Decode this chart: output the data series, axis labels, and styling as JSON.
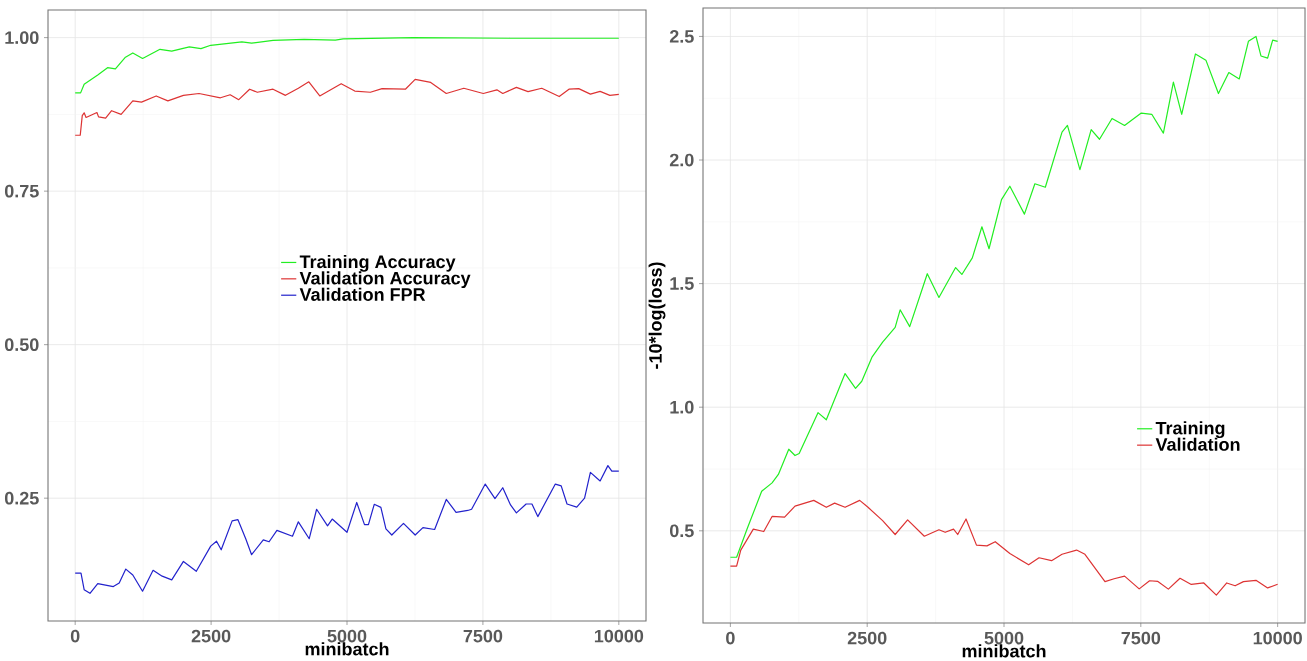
{
  "chart_data": [
    {
      "type": "line",
      "xlabel": "minibatch",
      "xlim": [
        -500,
        10500
      ],
      "ylim": [
        0.05,
        1.045
      ],
      "xticks": [
        0,
        2500,
        5000,
        7500,
        10000
      ],
      "yticks": [
        {
          "value": 0.25,
          "label": "0.25"
        },
        {
          "value": 0.5,
          "label": "0.50"
        },
        {
          "value": 0.75,
          "label": "0.75"
        },
        {
          "value": 1.0,
          "label": "1.00"
        }
      ],
      "grid": true,
      "legend": "center",
      "series": [
        {
          "name": "Training Accuracy",
          "color": "#22ee22",
          "x": [
            0,
            100,
            165,
            415,
            595,
            740,
            917,
            1060,
            1240,
            1560,
            1776,
            2100,
            2314,
            2493,
            3066,
            3245,
            3640,
            4212,
            4785,
            4930,
            6218,
            8000,
            10000
          ],
          "values": [
            0.91,
            0.91,
            0.924,
            0.939,
            0.951,
            0.949,
            0.9675,
            0.975,
            0.966,
            0.981,
            0.978,
            0.985,
            0.982,
            0.9875,
            0.993,
            0.991,
            0.9956,
            0.997,
            0.996,
            0.998,
            1.0,
            0.999,
            0.999
          ]
        },
        {
          "name": "Validation Accuracy",
          "color": "#dd3333",
          "x": [
            0,
            93,
            130,
            165,
            200,
            400,
            430,
            560,
            670,
            845,
            1060,
            1220,
            1490,
            1705,
            1991,
            2278,
            2672,
            2851,
            3009,
            3209,
            3350,
            3639,
            3868,
            4105,
            4298,
            4499,
            4893,
            5143,
            5430,
            5645,
            6074,
            6254,
            6540,
            6826,
            7149,
            7507,
            7757,
            7865,
            8116,
            8330,
            8582,
            8904,
            9083,
            9262,
            9477,
            9656,
            9835,
            10000
          ],
          "values": [
            0.841,
            0.841,
            0.873,
            0.8775,
            0.87,
            0.878,
            0.871,
            0.869,
            0.881,
            0.875,
            0.897,
            0.895,
            0.905,
            0.897,
            0.906,
            0.909,
            0.902,
            0.907,
            0.899,
            0.916,
            0.911,
            0.916,
            0.906,
            0.9175,
            0.928,
            0.905,
            0.925,
            0.913,
            0.911,
            0.917,
            0.916,
            0.932,
            0.927,
            0.909,
            0.9175,
            0.909,
            0.915,
            0.909,
            0.919,
            0.912,
            0.9175,
            0.904,
            0.916,
            0.917,
            0.908,
            0.9125,
            0.906,
            0.9075
          ]
        },
        {
          "name": "Validation FPR",
          "color": "#2222cc",
          "x": [
            0,
            107,
            165,
            272,
            415,
            702,
            810,
            931,
            1060,
            1239,
            1433,
            1600,
            1776,
            1991,
            2228,
            2493,
            2600,
            2686,
            2887,
            2994,
            3137,
            3245,
            3460,
            3567,
            3711,
            3997,
            4105,
            4305,
            4441,
            4642,
            4728,
            5000,
            5179,
            5322,
            5394,
            5501,
            5623,
            5716,
            5824,
            6039,
            6254,
            6397,
            6612,
            6826,
            7006,
            7221,
            7292,
            7543,
            7722,
            7865,
            8008,
            8116,
            8295,
            8402,
            8510,
            8832,
            8940,
            9047,
            9226,
            9370,
            9477,
            9656,
            9799,
            9871,
            10000
          ],
          "values": [
            0.128,
            0.128,
            0.101,
            0.095,
            0.111,
            0.106,
            0.112,
            0.1345,
            0.125,
            0.0985,
            0.1326,
            0.123,
            0.117,
            0.147,
            0.131,
            0.172,
            0.18,
            0.166,
            0.213,
            0.215,
            0.184,
            0.158,
            0.182,
            0.179,
            0.1976,
            0.188,
            0.2115,
            0.184,
            0.232,
            0.205,
            0.216,
            0.1945,
            0.243,
            0.207,
            0.207,
            0.24,
            0.235,
            0.2,
            0.19,
            0.209,
            0.19,
            0.202,
            0.199,
            0.248,
            0.227,
            0.23,
            0.232,
            0.273,
            0.2494,
            0.267,
            0.239,
            0.226,
            0.2405,
            0.2405,
            0.22,
            0.273,
            0.27,
            0.2405,
            0.2355,
            0.25,
            0.292,
            0.278,
            0.303,
            0.294,
            0.294
          ]
        }
      ]
    },
    {
      "type": "line",
      "xlabel": "minibatch",
      "ylabel": "-10*log(loss)",
      "xlim": [
        -500,
        10500
      ],
      "ylim": [
        0.127,
        2.615
      ],
      "xticks": [
        0,
        2500,
        5000,
        7500,
        10000
      ],
      "yticks": [
        0.5,
        {
          "value": 1.0,
          "label": "1.0"
        },
        1.5,
        {
          "value": 2.0,
          "label": "2.0"
        },
        2.5
      ],
      "grid": true,
      "legend": "lower right",
      "series": [
        {
          "name": "Training",
          "color": "#22ee22",
          "x": [
            0,
            114,
            305,
            572,
            762,
            877,
            1067,
            1181,
            1257,
            1601,
            1753,
            2096,
            2287,
            2401,
            2591,
            2782,
            3011,
            3102,
            3277,
            3598,
            3811,
            4116,
            4230,
            4421,
            4596,
            4726,
            4954,
            5107,
            5373,
            5564,
            5755,
            6060,
            6159,
            6387,
            6593,
            6745,
            6974,
            7203,
            7508,
            7700,
            7912,
            8095,
            8247,
            8498,
            8689,
            8918,
            9108,
            9299,
            9466,
            9604,
            9695,
            9817,
            9909,
            10000
          ],
          "values": [
            0.393,
            0.393,
            0.507,
            0.66,
            0.694,
            0.728,
            0.83,
            0.8045,
            0.813,
            0.978,
            0.949,
            1.136,
            1.0765,
            1.105,
            1.204,
            1.2635,
            1.323,
            1.394,
            1.326,
            1.54,
            1.444,
            1.565,
            1.537,
            1.604,
            1.73,
            1.641,
            1.84,
            1.894,
            1.781,
            1.904,
            1.89,
            2.113,
            2.14,
            1.961,
            2.123,
            2.084,
            2.168,
            2.14,
            2.19,
            2.185,
            2.109,
            2.315,
            2.185,
            2.429,
            2.404,
            2.269,
            2.354,
            2.328,
            2.48,
            2.5,
            2.421,
            2.412,
            2.485,
            2.48
          ]
        },
        {
          "name": "Validation",
          "color": "#dd3333",
          "x": [
            0,
            114,
            190,
            419,
            610,
            762,
            991,
            1181,
            1524,
            1753,
            1905,
            2096,
            2363,
            2515,
            2782,
            3011,
            3239,
            3544,
            3811,
            3925,
            4078,
            4154,
            4306,
            4497,
            4688,
            4840,
            5107,
            5450,
            5640,
            5869,
            6060,
            6326,
            6479,
            6845,
            7012,
            7203,
            7470,
            7660,
            7812,
            8003,
            8216,
            8422,
            8651,
            8880,
            9070,
            9223,
            9375,
            9604,
            9817,
            10000
          ],
          "values": [
            0.357,
            0.357,
            0.422,
            0.507,
            0.497,
            0.558,
            0.555,
            0.6,
            0.623,
            0.595,
            0.612,
            0.595,
            0.623,
            0.595,
            0.541,
            0.485,
            0.544,
            0.478,
            0.504,
            0.494,
            0.507,
            0.485,
            0.548,
            0.442,
            0.439,
            0.456,
            0.408,
            0.3625,
            0.391,
            0.379,
            0.405,
            0.422,
            0.405,
            0.2945,
            0.306,
            0.3166,
            0.265,
            0.298,
            0.295,
            0.264,
            0.308,
            0.283,
            0.289,
            0.24,
            0.289,
            0.2775,
            0.2945,
            0.2995,
            0.269,
            0.284
          ]
        }
      ]
    }
  ]
}
